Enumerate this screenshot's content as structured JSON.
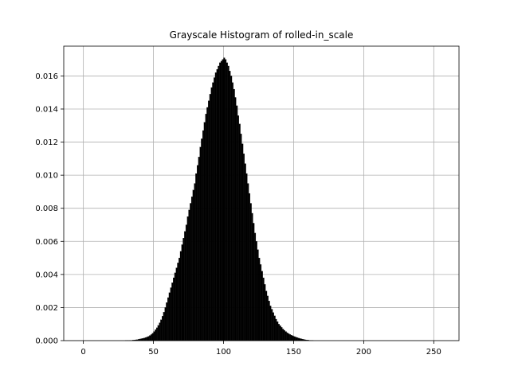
{
  "chart_data": {
    "type": "bar",
    "title": "Grayscale Histogram of rolled-in_scale",
    "xlabel": "",
    "ylabel": "",
    "xlim": [
      -14,
      268
    ],
    "ylim": [
      0,
      0.0178
    ],
    "xticks": [
      0,
      50,
      100,
      150,
      200,
      250
    ],
    "xtick_labels": [
      "0",
      "50",
      "100",
      "150",
      "200",
      "250"
    ],
    "yticks": [
      0.0,
      0.002,
      0.004,
      0.006,
      0.008,
      0.01,
      0.012,
      0.014,
      0.016
    ],
    "ytick_labels": [
      "0.000",
      "0.002",
      "0.004",
      "0.006",
      "0.008",
      "0.010",
      "0.012",
      "0.014",
      "0.016"
    ],
    "grid": true,
    "bar_color": "#000000",
    "bin_width": 1,
    "x_start": 0,
    "values": [
      0,
      0,
      0,
      0,
      0,
      0,
      0,
      0,
      0,
      0,
      0,
      0,
      0,
      0,
      0,
      0,
      0,
      0,
      0,
      0,
      0,
      0,
      0,
      0,
      0,
      0,
      0,
      0,
      0,
      0,
      1e-05,
      1e-05,
      1e-05,
      2e-05,
      2e-05,
      3e-05,
      4e-05,
      5e-05,
      6e-05,
      8e-05,
      0.0001,
      0.00012,
      0.00014,
      0.00016,
      0.00019,
      0.00022,
      0.00026,
      0.00031,
      0.00037,
      0.00045,
      0.00055,
      0.00066,
      0.00078,
      0.00092,
      0.00108,
      0.00126,
      0.00148,
      0.00172,
      0.002,
      0.0023,
      0.0026,
      0.0029,
      0.0032,
      0.0035,
      0.0038,
      0.0041,
      0.0044,
      0.0047,
      0.005,
      0.0054,
      0.0058,
      0.0062,
      0.0066,
      0.007,
      0.0075,
      0.0079,
      0.0083,
      0.0087,
      0.0091,
      0.0095,
      0.0101,
      0.0106,
      0.0111,
      0.0117,
      0.0122,
      0.0127,
      0.0132,
      0.0137,
      0.0141,
      0.0145,
      0.0149,
      0.0153,
      0.0156,
      0.0159,
      0.0162,
      0.0164,
      0.0166,
      0.0168,
      0.0169,
      0.017,
      0.0171,
      0.017,
      0.0168,
      0.0166,
      0.0163,
      0.016,
      0.0156,
      0.0152,
      0.0147,
      0.0142,
      0.0136,
      0.0131,
      0.0125,
      0.0119,
      0.0113,
      0.0107,
      0.0101,
      0.0095,
      0.0089,
      0.0083,
      0.0077,
      0.0071,
      0.0065,
      0.006,
      0.0055,
      0.005,
      0.0046,
      0.0042,
      0.0038,
      0.0034,
      0.003,
      0.0027,
      0.0024,
      0.0021,
      0.0019,
      0.0017,
      0.0015,
      0.0013,
      0.00115,
      0.001,
      0.0009,
      0.0008,
      0.0007,
      0.00062,
      0.00055,
      0.00048,
      0.00042,
      0.00037,
      0.00033,
      0.00029,
      0.00025,
      0.00022,
      0.00019,
      0.00016,
      0.00013,
      0.00011,
      9e-05,
      7e-05,
      5e-05,
      4e-05,
      3e-05,
      2e-05,
      1e-05,
      1e-05,
      0,
      0,
      0,
      0,
      0,
      0,
      0,
      0,
      0,
      0,
      0,
      0,
      0,
      0,
      0,
      0,
      0,
      0,
      0,
      0,
      0,
      0,
      0,
      0,
      0,
      0,
      0,
      0,
      0,
      0,
      0,
      0,
      0,
      0,
      0,
      0,
      0,
      0,
      0,
      0,
      0,
      0,
      0,
      0,
      0,
      0,
      0,
      0,
      0,
      0,
      0,
      0,
      0,
      0,
      0,
      0,
      0,
      0,
      0,
      0,
      0,
      0,
      0,
      0,
      0,
      0,
      0,
      0,
      0,
      0,
      0,
      0,
      0,
      0,
      0,
      0,
      0,
      0,
      0,
      0,
      0,
      0,
      0,
      0,
      0,
      0,
      0,
      0,
      0,
      0,
      0,
      0
    ]
  }
}
